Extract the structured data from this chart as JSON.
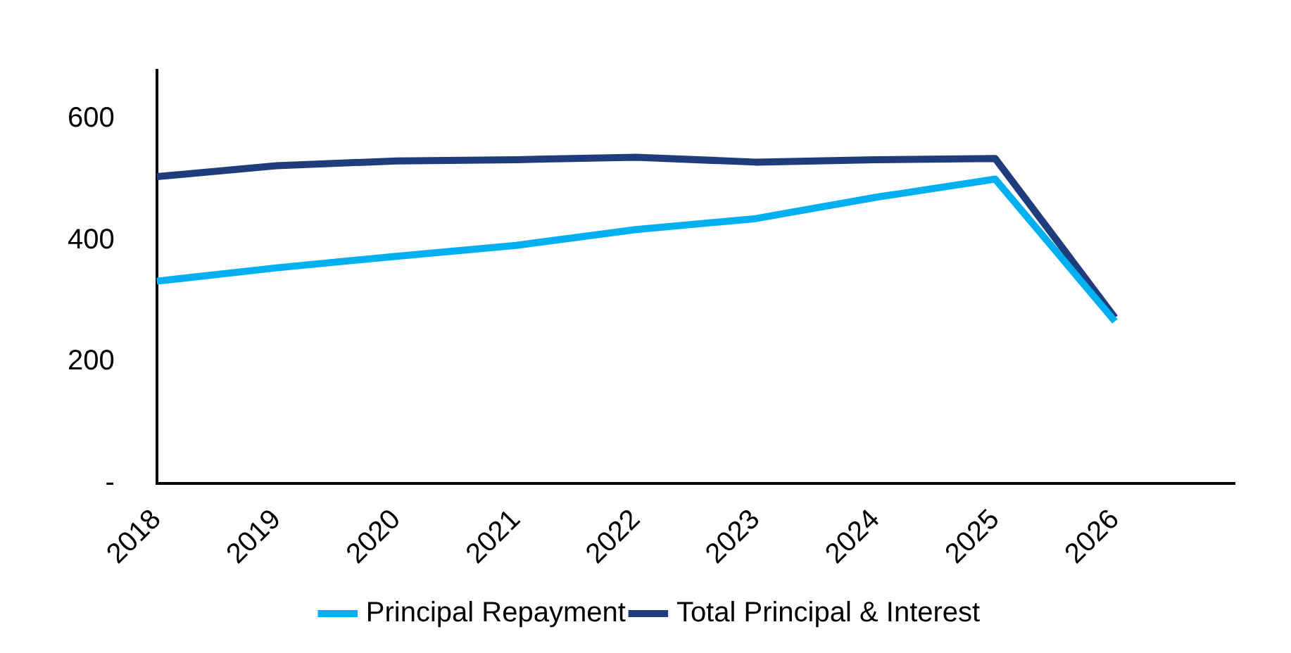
{
  "chart_data": {
    "type": "line",
    "categories": [
      "2018",
      "2019",
      "2020",
      "2021",
      "2022",
      "2023",
      "2024",
      "2025",
      "2026",
      null
    ],
    "series": [
      {
        "name": "Principal Repayment",
        "color": "#00b0f0",
        "values": [
          333,
          355,
          374,
          392,
          418,
          436,
          471,
          501,
          267,
          null
        ]
      },
      {
        "name": "Total Principal & Interest",
        "color": "#1f3d7a",
        "values": [
          505,
          523,
          531,
          533,
          537,
          529,
          533,
          535,
          273,
          null
        ]
      }
    ],
    "ylim": [
      0,
      680
    ],
    "yticks": [
      {
        "value": 0,
        "label": "-"
      },
      200,
      400,
      600
    ],
    "grid": false,
    "legend": "bottom",
    "marker": "none",
    "line_style": "solid"
  }
}
